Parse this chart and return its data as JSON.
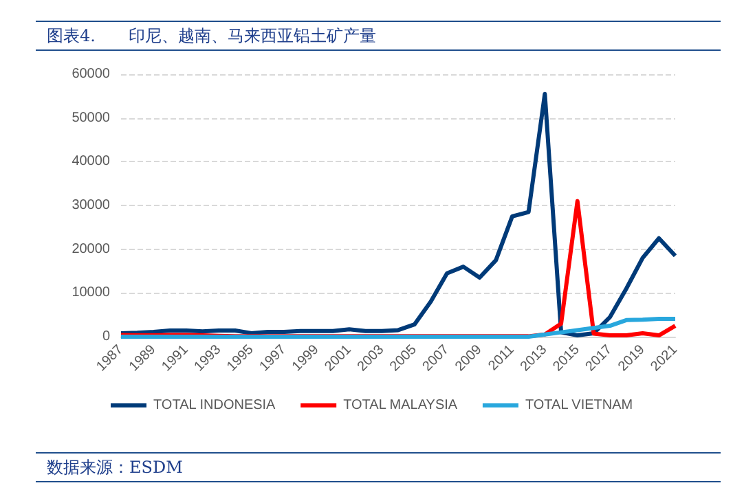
{
  "chart_data": {
    "type": "line",
    "title": "图表4.　　印尼、越南、马来西亚铝土矿产量",
    "annotations": [
      "数据来源：ESDM"
    ],
    "categories": [
      "1987",
      null,
      "1989",
      null,
      "1991",
      null,
      "1993",
      null,
      "1995",
      null,
      "1997",
      null,
      "1999",
      null,
      "2001",
      null,
      "2003",
      null,
      "2005",
      null,
      "2007",
      null,
      "2009",
      null,
      "2011",
      null,
      "2013",
      null,
      "2015",
      null,
      "2017",
      null,
      "2019",
      null,
      "2021"
    ],
    "series": [
      {
        "name": "TOTAL INDONESIA",
        "color": "#003a78",
        "values": [
          800,
          900,
          1100,
          1400,
          1400,
          1200,
          1400,
          1400,
          800,
          1100,
          1100,
          1300,
          1300,
          1300,
          1700,
          1300,
          1300,
          1500,
          2800,
          8000,
          14500,
          16000,
          13500,
          17500,
          27500,
          28500,
          55500,
          1000,
          300,
          800,
          4500,
          11000,
          18000,
          22500,
          18500
        ]
      },
      {
        "name": "TOTAL MALAYSIA",
        "color": "#ff0000",
        "values": [
          400,
          300,
          300,
          400,
          400,
          300,
          200,
          100,
          100,
          100,
          100,
          100,
          100,
          100,
          100,
          100,
          100,
          100,
          100,
          100,
          100,
          100,
          100,
          100,
          100,
          100,
          500,
          3000,
          31000,
          700,
          300,
          300,
          800,
          300,
          2500
        ]
      },
      {
        "name": "TOTAL VIETNAM",
        "color": "#28a7dd",
        "values": [
          0,
          0,
          0,
          0,
          0,
          0,
          0,
          0,
          0,
          0,
          0,
          0,
          0,
          0,
          0,
          0,
          0,
          0,
          0,
          0,
          0,
          0,
          0,
          0,
          0,
          0,
          500,
          1000,
          1500,
          2000,
          2500,
          3800,
          3900,
          4100,
          4100
        ]
      }
    ],
    "ylim": [
      0,
      60000
    ],
    "yticks": [
      0,
      10000,
      20000,
      30000,
      40000,
      50000,
      60000
    ],
    "grid": "y",
    "legend": "bottom",
    "marker": "none",
    "line_style": "solid"
  }
}
